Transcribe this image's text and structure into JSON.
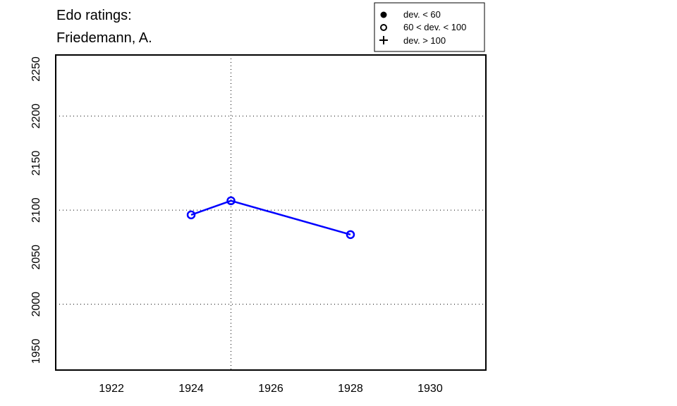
{
  "chart_data": {
    "type": "line",
    "title": "Edo ratings:",
    "subtitle": "Friedemann, A.",
    "xlabel": "",
    "ylabel": "",
    "x": [
      1924,
      1925,
      1928
    ],
    "values": [
      2095,
      2110,
      2074
    ],
    "point_marker": "open-circle",
    "xlim": [
      1920.6,
      1931.4
    ],
    "ylim": [
      1930,
      2265
    ],
    "xticks": [
      "1922",
      "1924",
      "1926",
      "1928",
      "1930"
    ],
    "yticks": [
      "1950",
      "2000",
      "2050",
      "2100",
      "2150",
      "2200",
      "2250"
    ],
    "grid_x": [
      1925
    ],
    "grid_y": [
      2000,
      2100,
      2200
    ],
    "grid": "dotted",
    "series_color": "#0000ff",
    "legend": {
      "placement": "top-right",
      "entries": [
        {
          "marker": "filled-circle",
          "label": "dev. < 60"
        },
        {
          "marker": "open-circle",
          "label": "60 < dev. < 100"
        },
        {
          "marker": "plus",
          "label": "dev. > 100"
        }
      ]
    }
  }
}
